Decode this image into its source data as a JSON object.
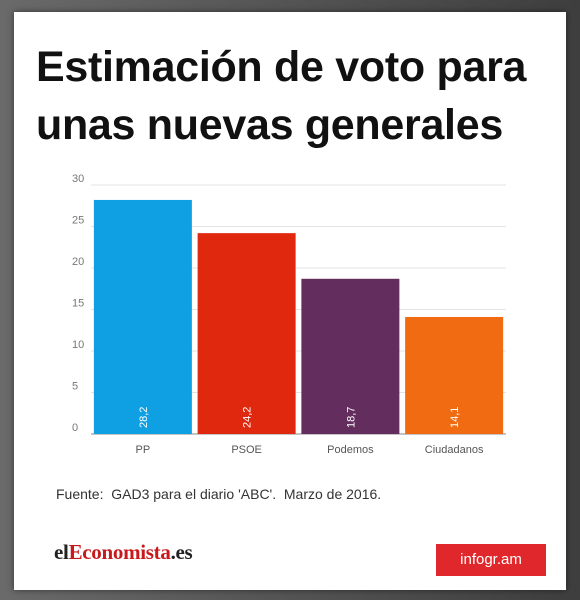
{
  "chart_data": {
    "type": "bar",
    "title": "Estimación de voto para unas nuevas generales",
    "title_lines": [
      "Estimación de voto para",
      "unas nuevas generales"
    ],
    "categories": [
      "PP",
      "PSOE",
      "Podemos",
      "Ciudadanos"
    ],
    "values": [
      28.2,
      24.2,
      18.7,
      14.1
    ],
    "value_labels": [
      "28,2",
      "24,2",
      "18,7",
      "14,1"
    ],
    "colors": [
      "#0ea0e2",
      "#e0280f",
      "#632d5e",
      "#f06b12"
    ],
    "ylim": [
      0,
      30
    ],
    "yticks": [
      0,
      5,
      10,
      15,
      20,
      25,
      30
    ],
    "grid": true,
    "xlabel": "",
    "ylabel": ""
  },
  "source": "Fuente:  GAD3 para el diario 'ABC'.  Marzo de 2016.",
  "logo": {
    "part1": "el",
    "part2": "Economista",
    "part3": ".es"
  },
  "brand": "infogr.am"
}
